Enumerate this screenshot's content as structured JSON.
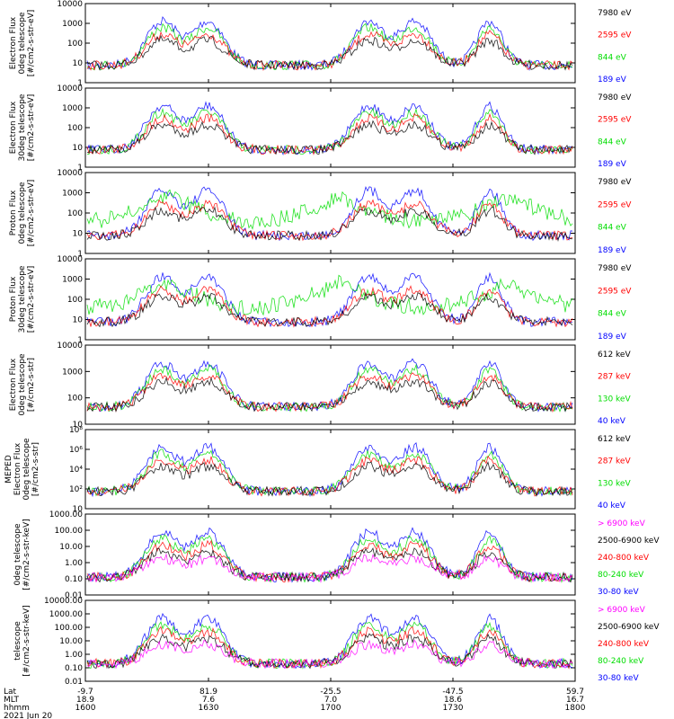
{
  "chart_data": {
    "type": "line",
    "date_label": "2021 Jun 20",
    "x_axis": {
      "row_labels": [
        "Lat",
        "MLT",
        "hhmm"
      ],
      "ticks": [
        {
          "lat": "-9.7",
          "mlt": "18.9",
          "hhmm": "1600"
        },
        {
          "lat": "81.9",
          "mlt": "7.6",
          "hhmm": "1630"
        },
        {
          "lat": "-25.5",
          "mlt": "7.0",
          "hhmm": "1700"
        },
        {
          "lat": "-47.5",
          "mlt": "18.6",
          "hhmm": "1730"
        },
        {
          "lat": "59.7",
          "mlt": "16.7",
          "hhmm": "1800"
        }
      ]
    },
    "colors": {
      "black": "#000000",
      "red": "#ff0000",
      "green": "#00dd00",
      "blue": "#0000ff",
      "magenta": "#ff00ff"
    },
    "panels": [
      {
        "ylabel": [
          "Electron Flux",
          "0deg telescope",
          "[#/cm2-s-str-eV]"
        ],
        "yticks": [
          "1",
          "10",
          "100",
          "1000",
          "10000"
        ],
        "ylog": [
          0,
          4
        ],
        "legend": [
          {
            "label": "7980 eV",
            "color": "black"
          },
          {
            "label": "2595 eV",
            "color": "red"
          },
          {
            "label": "844 eV",
            "color": "green"
          },
          {
            "label": "189 eV",
            "color": "blue"
          }
        ]
      },
      {
        "ylabel": [
          "Electron Flux",
          "30deg telescope",
          "[#/cm2-s-str-eV]"
        ],
        "yticks": [
          "1",
          "10",
          "100",
          "1000",
          "10000"
        ],
        "ylog": [
          0,
          4
        ],
        "legend": [
          {
            "label": "7980 eV",
            "color": "black"
          },
          {
            "label": "2595 eV",
            "color": "red"
          },
          {
            "label": "844 eV",
            "color": "green"
          },
          {
            "label": "189 eV",
            "color": "blue"
          }
        ]
      },
      {
        "ylabel": [
          "Proton Flux",
          "0deg telescope",
          "[#/cm2-s-str-eV]"
        ],
        "yticks": [
          "1",
          "10",
          "100",
          "1000",
          "10000"
        ],
        "ylog": [
          0,
          4
        ],
        "legend": [
          {
            "label": "7980 eV",
            "color": "black"
          },
          {
            "label": "2595 eV",
            "color": "red"
          },
          {
            "label": "844 eV",
            "color": "green"
          },
          {
            "label": "189 eV",
            "color": "blue"
          }
        ]
      },
      {
        "ylabel": [
          "Proton Flux",
          "30deg telescope",
          "[#/cm2-s-str-eV]"
        ],
        "yticks": [
          "1",
          "10",
          "100",
          "1000",
          "10000"
        ],
        "ylog": [
          0,
          4
        ],
        "legend": [
          {
            "label": "7980 eV",
            "color": "black"
          },
          {
            "label": "2595 eV",
            "color": "red"
          },
          {
            "label": "844 eV",
            "color": "green"
          },
          {
            "label": "189 eV",
            "color": "blue"
          }
        ]
      },
      {
        "ylabel": [
          "Electron Flux",
          "0deg telescope",
          "[#/cm2-s-str]"
        ],
        "yticks": [
          "10",
          "100",
          "1000",
          "10000"
        ],
        "ylog": [
          1,
          4
        ],
        "legend": [
          {
            "label": "612 keV",
            "color": "black"
          },
          {
            "label": "287 keV",
            "color": "red"
          },
          {
            "label": "130 keV",
            "color": "green"
          },
          {
            "label": "40 keV",
            "color": "blue"
          }
        ]
      },
      {
        "ylabel": [
          "MEPED",
          "Electron Flux",
          "0deg telescope",
          "[#/cm2-s-str]"
        ],
        "yticks": [
          "10",
          "10²",
          "10⁴",
          "10⁶",
          "10⁸"
        ],
        "ylog": [
          1,
          8
        ],
        "legend": [
          {
            "label": "612 keV",
            "color": "black"
          },
          {
            "label": "287 keV",
            "color": "red"
          },
          {
            "label": "130 keV",
            "color": "green"
          },
          {
            "label": "40 keV",
            "color": "blue"
          }
        ]
      },
      {
        "ylabel": [
          "0deg telescope",
          "[#/cm2-s-str-keV]"
        ],
        "yticks": [
          "0.01",
          "0.10",
          "1.00",
          "10.00",
          "100.00",
          "1000.00"
        ],
        "ylog": [
          -2,
          3
        ],
        "legend": [
          {
            "label": "> 6900 keV",
            "color": "magenta"
          },
          {
            "label": "2500-6900 keV",
            "color": "black"
          },
          {
            "label": "240-800 keV",
            "color": "red"
          },
          {
            "label": "80-240 keV",
            "color": "green"
          },
          {
            "label": "30-80 keV",
            "color": "blue"
          }
        ]
      },
      {
        "ylabel": [
          "telescope",
          "[#/cm2-s-str-keV]"
        ],
        "yticks": [
          "0.01",
          "0.10",
          "1.00",
          "10.00",
          "100.00",
          "1000.00",
          "10000.00"
        ],
        "ylog": [
          -2,
          4
        ],
        "legend": [
          {
            "label": "> 6900 keV",
            "color": "magenta"
          },
          {
            "label": "2500-6900 keV",
            "color": "black"
          },
          {
            "label": "240-800 keV",
            "color": "red"
          },
          {
            "label": "80-240 keV",
            "color": "green"
          },
          {
            "label": "30-80 keV",
            "color": "blue"
          }
        ]
      }
    ]
  }
}
